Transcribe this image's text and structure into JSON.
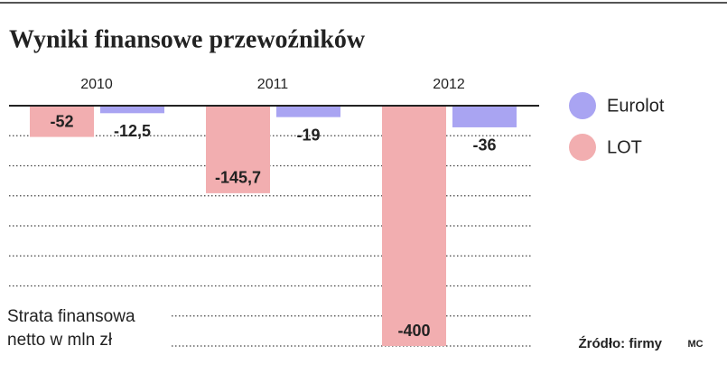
{
  "chart_data": {
    "type": "bar",
    "title": "Wyniki finansowe przewoźników",
    "categories": [
      "2010",
      "2011",
      "2012"
    ],
    "series": [
      {
        "name": "Eurolot",
        "color": "#a9a4f2",
        "values": [
          -12.5,
          -19,
          -36
        ],
        "value_labels": [
          "-12,5",
          "-19",
          "-36"
        ]
      },
      {
        "name": "LOT",
        "color": "#f2aeb0",
        "values": [
          -52,
          -145.7,
          -400
        ],
        "value_labels": [
          "-52",
          "-145,7",
          "-400"
        ]
      }
    ],
    "ylim": [
      -400,
      0
    ],
    "yticks": [
      0,
      -50,
      -100,
      -150,
      -200,
      -250,
      -300,
      -350,
      -400
    ],
    "grid": true,
    "y_label": "Strata finansowa netto w mln zł",
    "source": "Źródło: firmy",
    "credit": "MC"
  }
}
